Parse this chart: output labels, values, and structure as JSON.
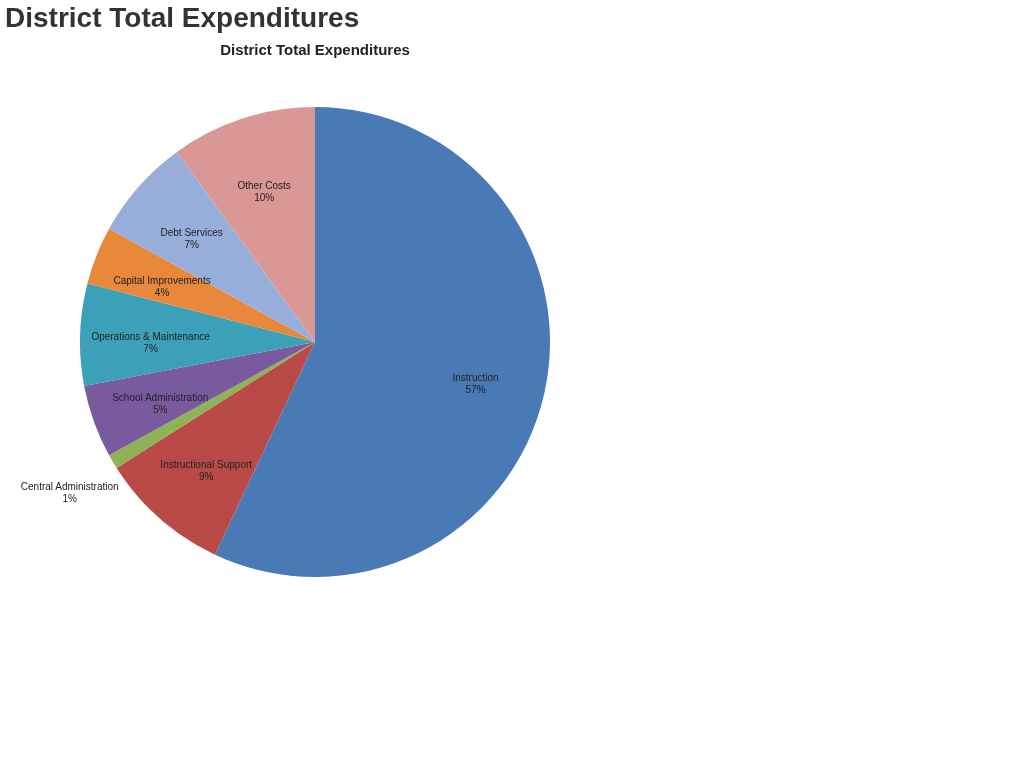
{
  "chart_data": {
    "type": "pie",
    "title": "District Total Expenditures",
    "subtitle": "District Total Expenditures",
    "categories": [
      "Instruction",
      "Instructional Support",
      "Central Administration",
      "School Administration",
      "Operations & Maintenance",
      "Capital Improvements",
      "Debt Services",
      "Other Costs"
    ],
    "values": [
      57,
      9,
      1,
      5,
      7,
      4,
      7,
      10
    ],
    "value_labels": [
      "57%",
      "9%",
      "1%",
      "5%",
      "7%",
      "4%",
      "7%",
      "10%"
    ],
    "colors": [
      "#4a7ab5",
      "#b94a48",
      "#8db354",
      "#7a5a9e",
      "#3ba0b8",
      "#e8883a",
      "#97aedb",
      "#d99796"
    ]
  }
}
